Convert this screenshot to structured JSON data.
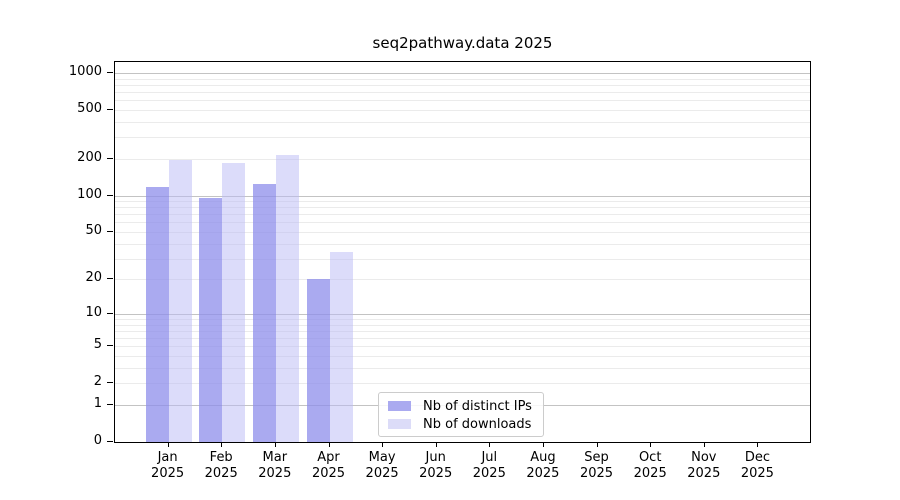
{
  "chart_data": {
    "type": "bar",
    "title": "seq2pathway.data 2025",
    "categories": [
      "Jan 2025",
      "Feb 2025",
      "Mar 2025",
      "Apr 2025",
      "May 2025",
      "Jun 2025",
      "Jul 2025",
      "Aug 2025",
      "Sep 2025",
      "Oct 2025",
      "Nov 2025",
      "Dec 2025"
    ],
    "series": [
      {
        "name": "Nb of distinct IPs",
        "color": "#aaaaf0",
        "fill": "rgba(142,142,235,0.75)",
        "values": [
          118,
          96,
          125,
          20,
          null,
          null,
          null,
          null,
          null,
          null,
          null,
          null
        ]
      },
      {
        "name": "Nb of downloads",
        "color": "#dcdcf8",
        "fill": "rgba(185,185,245,0.5)",
        "values": [
          197,
          186,
          216,
          34,
          null,
          null,
          null,
          null,
          null,
          null,
          null,
          null
        ]
      }
    ],
    "yscale": "log1p",
    "ylim": [
      0,
      1250
    ],
    "yticks": [
      0,
      1,
      2,
      5,
      10,
      20,
      50,
      100,
      200,
      500,
      1000
    ],
    "grid": true,
    "legend_position": "bottom-center",
    "colors": {
      "major_grid": "#c3c3c3",
      "minor_grid": "#ebebeb",
      "axis": "#000000",
      "legend_border": "#cccccc"
    }
  }
}
